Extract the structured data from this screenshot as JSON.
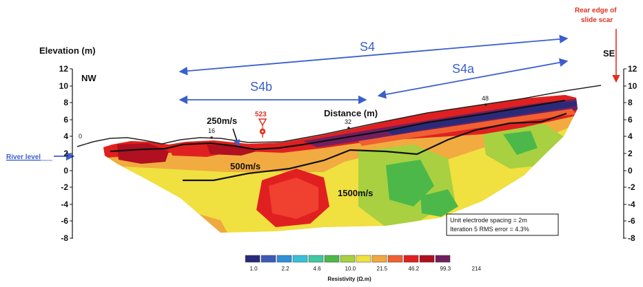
{
  "figure": {
    "left_axis_title": "Elevation (m)",
    "left_corner_label": "NW",
    "right_corner_label": "SE",
    "y_ticks": [
      "12",
      "10",
      "8",
      "6",
      "4",
      "2",
      "0",
      "-2",
      "-4",
      "-6",
      "-8"
    ],
    "distance_label": "Distance (m)",
    "distance_ticks": [
      "0",
      "16",
      "32",
      "48"
    ],
    "section_labels": {
      "s4": "S4",
      "s4a": "S4a",
      "s4b": "S4b"
    },
    "velocity_labels": {
      "v250": "250m/s",
      "v500": "500m/s",
      "v1500": "1500m/s"
    },
    "marker_label": "523",
    "river_level_label": "River level",
    "rear_edge_label_line1": "Rear edge of",
    "rear_edge_label_line2": "slide scar",
    "info_box": {
      "line1": "Unit electrode spacing = 2m",
      "line2": "Iteration 5 RMS error = 4.3%"
    },
    "legend": {
      "title": "Resistivity (Ω.m)",
      "labels": [
        "1.0",
        "2.2",
        "4.6",
        "10.0",
        "21.5",
        "46.2",
        "99.3",
        "214"
      ],
      "colors": [
        "#2a2a7a",
        "#3c5bb8",
        "#2e90d8",
        "#38c0d8",
        "#40c8a0",
        "#4cb84a",
        "#a8d040",
        "#f0e040",
        "#f0a840",
        "#f06030",
        "#e02020",
        "#b01020",
        "#702060"
      ]
    },
    "colors": {
      "arrow_blue": "#3a5fcd",
      "marker_red": "#e03020"
    }
  }
}
